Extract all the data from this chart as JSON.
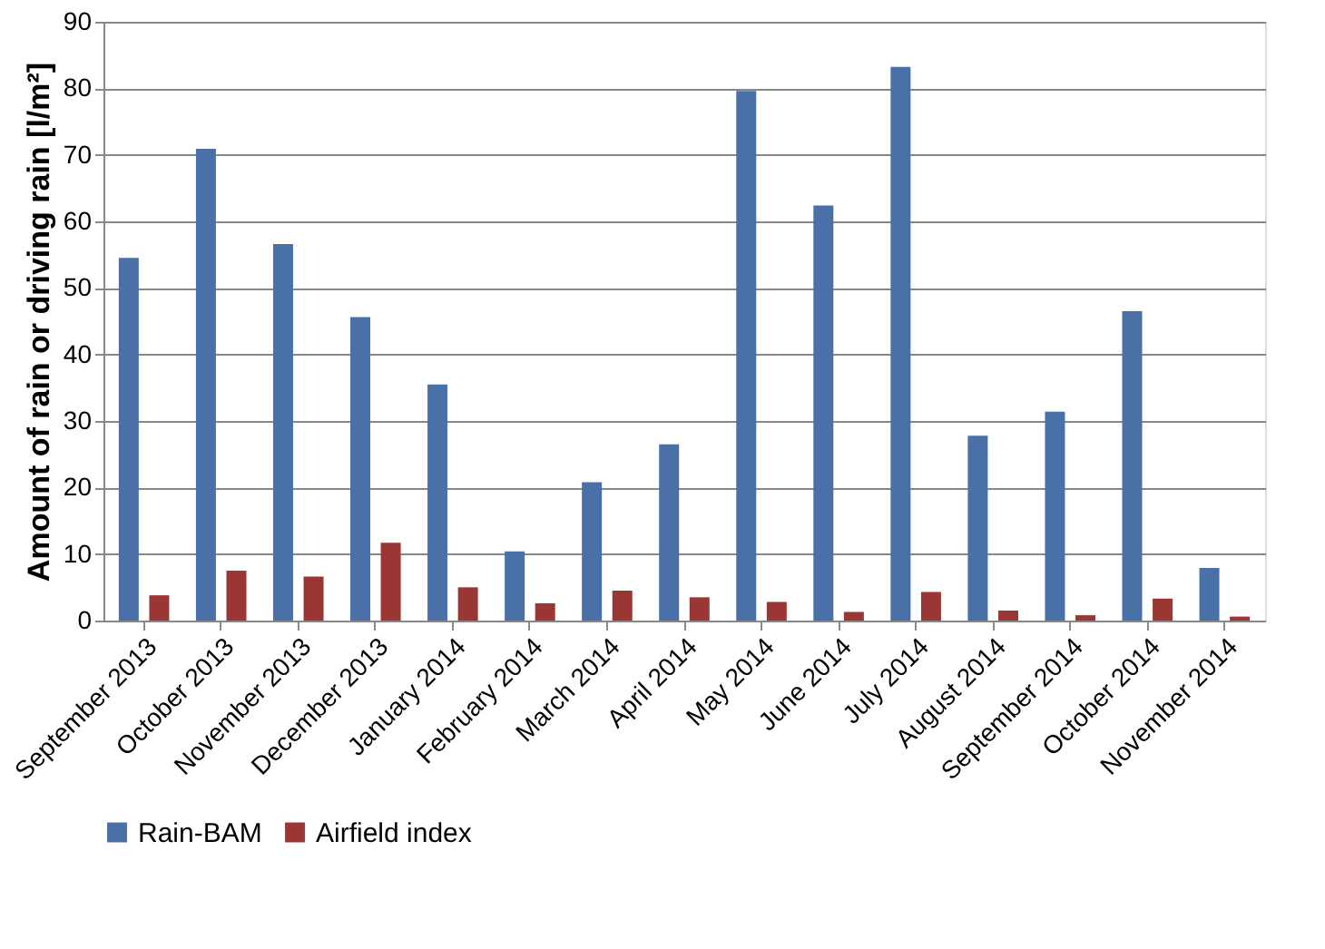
{
  "chart_data": {
    "type": "bar",
    "ylabel": "Amount  of rain or driving rain [l/m²]",
    "categories": [
      "September 2013",
      "October 2013",
      "November 2013",
      "December 2013",
      "January 2014",
      "February 2014",
      "March 2014",
      "April 2014",
      "May 2014",
      "June 2014",
      "July 2014",
      "August 2014",
      "September 2014",
      "October 2014",
      "November 2014"
    ],
    "series": [
      {
        "name": "Rain-BAM",
        "color": "#4a70a8",
        "values": [
          54.5,
          70.9,
          56.6,
          45.6,
          35.5,
          10.4,
          20.8,
          26.5,
          79.6,
          62.4,
          83.2,
          27.8,
          31.4,
          46.5,
          7.9
        ]
      },
      {
        "name": "Airfield index",
        "color": "#9a3634",
        "values": [
          3.8,
          7.5,
          6.6,
          11.7,
          5.0,
          2.6,
          4.5,
          3.5,
          2.8,
          1.3,
          4.3,
          1.5,
          0.8,
          3.3,
          0.6
        ]
      }
    ],
    "ylim": [
      0,
      90
    ],
    "yticks": [
      0,
      10,
      20,
      30,
      40,
      50,
      60,
      70,
      80,
      90
    ],
    "grid": "y",
    "legend": "bottom"
  }
}
